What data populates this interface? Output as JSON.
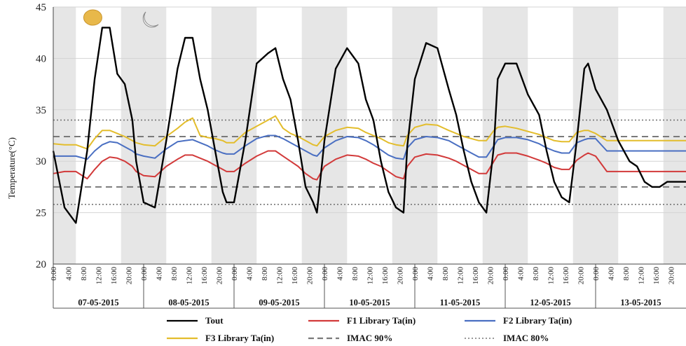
{
  "chart_data": {
    "type": "line",
    "title": "",
    "ylabel": "Temperature(°C)",
    "xlabel": "",
    "ylim": [
      20,
      45
    ],
    "yticks": [
      20,
      25,
      30,
      35,
      40,
      45
    ],
    "grid": "horizontal",
    "legend_position": "bottom",
    "days": [
      "07-05-2015",
      "08-05-2015",
      "09-05-2015",
      "10-05-2015",
      "11-05-2015",
      "12-05-2015",
      "13-05-2015"
    ],
    "hour_ticks": [
      "0:00",
      "4:00",
      "8:00",
      "12:00",
      "16:00",
      "20:00"
    ],
    "night_shading": "gray bands 0:00–6:00 and 18:00–24:00",
    "colors": {
      "Tout": "#000000",
      "F1": "#d23a3a",
      "F2": "#4a6fc2",
      "F3": "#e3bd2c",
      "IMAC90": "#7a7a7a",
      "IMAC80": "#777777",
      "night": "#e6e6e6",
      "sun": "#e8b84a"
    },
    "icons": [
      "sun-icon",
      "moon-icon"
    ],
    "hours": [
      0,
      3,
      6,
      9,
      11,
      13,
      15,
      17,
      19,
      21,
      22,
      24,
      27,
      30,
      33,
      35,
      37,
      39,
      41,
      43,
      45,
      46,
      48,
      51,
      54,
      57,
      59,
      61,
      63,
      65,
      67,
      69,
      70,
      72,
      75,
      78,
      81,
      83,
      85,
      87,
      89,
      91,
      93,
      94,
      96,
      99,
      102,
      105,
      107,
      109,
      111,
      113,
      115,
      117,
      118,
      120,
      123,
      126,
      129,
      131,
      133,
      135,
      137,
      139,
      141,
      142,
      144,
      147,
      150,
      153,
      155,
      157,
      159,
      161,
      163,
      165,
      166,
      168
    ],
    "series": [
      {
        "name": "Tout",
        "style": "solid",
        "values": [
          31,
          25.5,
          24,
          31,
          38,
          43,
          43,
          38.5,
          37.5,
          34,
          30,
          26,
          25.5,
          32,
          39,
          42,
          42,
          38,
          35,
          31,
          27,
          26,
          26,
          32,
          39.5,
          40.5,
          41,
          38,
          36,
          32,
          27.5,
          26,
          25,
          32,
          39,
          41,
          39.5,
          36,
          34,
          30,
          27,
          25.5,
          25,
          31.5,
          38,
          41.5,
          41,
          37,
          34.5,
          31,
          28,
          26,
          25,
          31.5,
          38,
          39.5,
          39.5,
          36.5,
          34.5,
          31,
          28,
          26.5,
          26,
          32,
          39,
          39.5,
          37,
          35,
          32,
          30,
          29.5,
          28,
          27.5,
          27.5,
          28,
          28,
          28,
          28
        ]
      },
      {
        "name": "F1 Library Ta(in)",
        "style": "solid",
        "values": [
          28.8,
          29,
          29,
          28.3,
          29.2,
          30,
          30.4,
          30.3,
          30,
          29.5,
          29,
          28.6,
          28.5,
          29.5,
          30.2,
          30.6,
          30.6,
          30.3,
          30,
          29.6,
          29.2,
          29,
          29,
          29.8,
          30.5,
          31,
          31,
          30.5,
          30,
          29.5,
          28.8,
          28.3,
          28.2,
          29.5,
          30.2,
          30.6,
          30.5,
          30.2,
          29.8,
          29.5,
          29,
          28.5,
          28.3,
          29.5,
          30.4,
          30.7,
          30.6,
          30.3,
          30,
          29.6,
          29.2,
          28.8,
          28.8,
          30,
          30.6,
          30.8,
          30.8,
          30.5,
          30.1,
          29.8,
          29.4,
          29.2,
          29.2,
          30.1,
          30.6,
          30.8,
          30.5,
          29,
          29,
          29,
          29,
          29,
          29,
          29,
          29,
          29,
          29,
          29
        ]
      },
      {
        "name": "F2 Library Ta(in)",
        "style": "solid",
        "values": [
          30.5,
          30.5,
          30.5,
          30.2,
          31,
          31.6,
          31.9,
          31.8,
          31.4,
          31,
          30.7,
          30.5,
          30.3,
          31.2,
          31.9,
          32,
          32.1,
          31.8,
          31.5,
          31.1,
          30.8,
          30.7,
          30.7,
          31.5,
          32.2,
          32.5,
          32.5,
          32.2,
          31.8,
          31.4,
          31,
          30.6,
          30.5,
          31.3,
          32,
          32.4,
          32.3,
          32,
          31.6,
          31.1,
          30.6,
          30.3,
          30.2,
          31.3,
          32.1,
          32.4,
          32.3,
          32,
          31.6,
          31.2,
          30.8,
          30.4,
          30.4,
          31.5,
          32.1,
          32.3,
          32.3,
          32.1,
          31.7,
          31.3,
          31,
          30.8,
          30.8,
          31.8,
          32.1,
          32.2,
          32.2,
          31,
          31,
          31,
          31,
          31,
          31,
          31,
          31,
          31,
          31,
          31
        ]
      },
      {
        "name": "F3 Library Ta(in)",
        "style": "solid",
        "values": [
          31.7,
          31.6,
          31.6,
          31.2,
          32.2,
          33,
          33,
          32.7,
          32.4,
          32,
          31.8,
          31.6,
          31.5,
          32.4,
          33.2,
          33.8,
          34.2,
          32.5,
          32.3,
          32.2,
          32,
          31.8,
          31.8,
          32.8,
          33.4,
          34,
          34.4,
          33.2,
          32.7,
          32.4,
          32,
          31.6,
          31.5,
          32.4,
          33,
          33.3,
          33.2,
          32.8,
          32.5,
          32.2,
          31.8,
          31.6,
          31.5,
          32.5,
          33.3,
          33.6,
          33.5,
          33,
          32.7,
          32.4,
          32.2,
          32,
          32,
          33,
          33.3,
          33.4,
          33.2,
          32.9,
          32.6,
          32.3,
          32,
          31.9,
          31.9,
          32.8,
          33,
          33,
          32.7,
          32,
          32,
          32,
          32,
          32,
          32,
          32,
          32,
          32,
          32,
          32
        ]
      },
      {
        "name": "IMAC 90%",
        "style": "dashed",
        "values": [
          27.5,
          32.4
        ]
      },
      {
        "name": "IMAC 80%",
        "style": "dotted",
        "values": [
          25.8,
          34.0
        ]
      }
    ],
    "legend": [
      {
        "label": "Tout",
        "key": "Tout"
      },
      {
        "label": "F1 Library Ta(in)",
        "key": "F1"
      },
      {
        "label": "F2 Library Ta(in)",
        "key": "F2"
      },
      {
        "label": "F3 Library Ta(in)",
        "key": "F3"
      },
      {
        "label": "IMAC 90%",
        "key": "IMAC90"
      },
      {
        "label": "IMAC 80%",
        "key": "IMAC80"
      }
    ]
  }
}
